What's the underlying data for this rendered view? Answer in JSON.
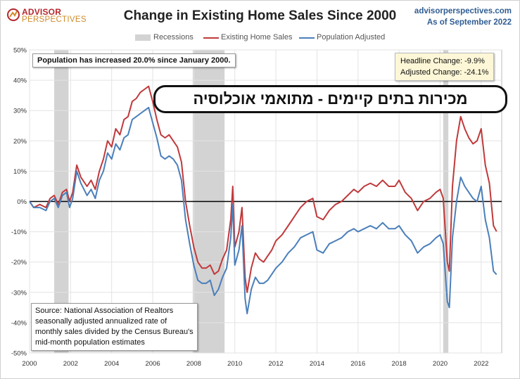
{
  "brand": {
    "line1": "ADVISOR",
    "line2": "PERSPECTIVES"
  },
  "site": {
    "url": "advisorperspectives.com",
    "date": "As of September 2022"
  },
  "colors": {
    "existing": "#c0393b",
    "adjusted": "#4a7fba",
    "recession": "#d3d3d3"
  },
  "annotations": {
    "population": "Population has increased 20.0% since January 2000.",
    "headline": "Headline Change: -9.9%",
    "adjusted": "Adjusted Change: -24.1%",
    "source": "Source: National Association of Realtors seasonally adjusted annualized rate of monthly sales divided by the Census Bureau's mid-month population estimates",
    "overlay_hebrew": "מכירות בתים קיימים - מתואמי אוכלוסיה"
  },
  "chart_data": {
    "type": "line",
    "title": "Change in Existing Home Sales Since 2000",
    "xlabel": "",
    "ylabel": "",
    "xlim": [
      2000,
      2023
    ],
    "ylim": [
      -50,
      50
    ],
    "x_ticks": [
      "2000",
      "2002",
      "2004",
      "2006",
      "2008",
      "2010",
      "2012",
      "2014",
      "2016",
      "2018",
      "2020",
      "2022"
    ],
    "y_ticks": [
      "50%",
      "40%",
      "30%",
      "20%",
      "10%",
      "0%",
      "-10%",
      "-20%",
      "-30%",
      "-40%",
      "-50%"
    ],
    "grid": true,
    "legend": "top-center",
    "legend_entries": [
      "Recessions",
      "Existing Home Sales",
      "Population Adjusted"
    ],
    "recessions": [
      [
        2001.2,
        2001.9
      ],
      [
        2007.95,
        2009.5
      ],
      [
        2020.15,
        2020.4
      ]
    ],
    "series": [
      {
        "name": "Existing Home Sales",
        "color": "#c0393b",
        "points": [
          [
            2000.0,
            0
          ],
          [
            2000.2,
            -2
          ],
          [
            2000.5,
            -1
          ],
          [
            2000.8,
            -2
          ],
          [
            2001.0,
            1
          ],
          [
            2001.2,
            2
          ],
          [
            2001.4,
            -1
          ],
          [
            2001.6,
            3
          ],
          [
            2001.8,
            4
          ],
          [
            2001.95,
            0
          ],
          [
            2002.1,
            3
          ],
          [
            2002.3,
            12
          ],
          [
            2002.5,
            8
          ],
          [
            2002.8,
            5
          ],
          [
            2003.0,
            7
          ],
          [
            2003.2,
            4
          ],
          [
            2003.4,
            10
          ],
          [
            2003.6,
            14
          ],
          [
            2003.8,
            20
          ],
          [
            2004.0,
            18
          ],
          [
            2004.2,
            24
          ],
          [
            2004.4,
            22
          ],
          [
            2004.6,
            27
          ],
          [
            2004.8,
            28
          ],
          [
            2005.0,
            33
          ],
          [
            2005.2,
            34
          ],
          [
            2005.4,
            36
          ],
          [
            2005.6,
            37
          ],
          [
            2005.8,
            38
          ],
          [
            2006.0,
            33
          ],
          [
            2006.2,
            27
          ],
          [
            2006.4,
            22
          ],
          [
            2006.6,
            21
          ],
          [
            2006.8,
            22
          ],
          [
            2007.0,
            20
          ],
          [
            2007.2,
            18
          ],
          [
            2007.4,
            13
          ],
          [
            2007.6,
            0
          ],
          [
            2007.8,
            -8
          ],
          [
            2008.0,
            -15
          ],
          [
            2008.2,
            -20
          ],
          [
            2008.4,
            -22
          ],
          [
            2008.6,
            -22
          ],
          [
            2008.8,
            -21
          ],
          [
            2009.0,
            -24
          ],
          [
            2009.2,
            -23
          ],
          [
            2009.4,
            -19
          ],
          [
            2009.6,
            -16
          ],
          [
            2009.8,
            -6
          ],
          [
            2009.9,
            5
          ],
          [
            2010.0,
            -15
          ],
          [
            2010.2,
            -10
          ],
          [
            2010.35,
            -2
          ],
          [
            2010.5,
            -25
          ],
          [
            2010.6,
            -30
          ],
          [
            2010.8,
            -22
          ],
          [
            2011.0,
            -17
          ],
          [
            2011.2,
            -19
          ],
          [
            2011.4,
            -20
          ],
          [
            2011.6,
            -18
          ],
          [
            2011.8,
            -16
          ],
          [
            2012.0,
            -13
          ],
          [
            2012.3,
            -11
          ],
          [
            2012.6,
            -8
          ],
          [
            2012.9,
            -5
          ],
          [
            2013.2,
            -2
          ],
          [
            2013.5,
            0
          ],
          [
            2013.8,
            1
          ],
          [
            2014.0,
            -5
          ],
          [
            2014.3,
            -6
          ],
          [
            2014.6,
            -3
          ],
          [
            2014.9,
            -1
          ],
          [
            2015.2,
            0
          ],
          [
            2015.5,
            2
          ],
          [
            2015.8,
            4
          ],
          [
            2016.0,
            3
          ],
          [
            2016.3,
            5
          ],
          [
            2016.6,
            6
          ],
          [
            2016.9,
            5
          ],
          [
            2017.2,
            7
          ],
          [
            2017.5,
            5
          ],
          [
            2017.8,
            5
          ],
          [
            2018.0,
            7
          ],
          [
            2018.3,
            3
          ],
          [
            2018.6,
            1
          ],
          [
            2018.9,
            -3
          ],
          [
            2019.2,
            0
          ],
          [
            2019.5,
            1
          ],
          [
            2019.8,
            3
          ],
          [
            2020.0,
            4
          ],
          [
            2020.15,
            1
          ],
          [
            2020.35,
            -20
          ],
          [
            2020.45,
            -23
          ],
          [
            2020.6,
            5
          ],
          [
            2020.8,
            20
          ],
          [
            2021.0,
            28
          ],
          [
            2021.2,
            24
          ],
          [
            2021.4,
            21
          ],
          [
            2021.6,
            19
          ],
          [
            2021.8,
            20
          ],
          [
            2022.0,
            24
          ],
          [
            2022.2,
            12
          ],
          [
            2022.4,
            6
          ],
          [
            2022.6,
            -8
          ],
          [
            2022.75,
            -9.9
          ]
        ]
      },
      {
        "name": "Population Adjusted",
        "color": "#4a7fba",
        "points": [
          [
            2000.0,
            0
          ],
          [
            2000.2,
            -2
          ],
          [
            2000.5,
            -2
          ],
          [
            2000.8,
            -3
          ],
          [
            2001.0,
            0
          ],
          [
            2001.2,
            1
          ],
          [
            2001.4,
            -2
          ],
          [
            2001.6,
            2
          ],
          [
            2001.8,
            3
          ],
          [
            2001.95,
            -2
          ],
          [
            2002.1,
            1
          ],
          [
            2002.3,
            10
          ],
          [
            2002.5,
            6
          ],
          [
            2002.8,
            2
          ],
          [
            2003.0,
            4
          ],
          [
            2003.2,
            1
          ],
          [
            2003.4,
            7
          ],
          [
            2003.6,
            10
          ],
          [
            2003.8,
            16
          ],
          [
            2004.0,
            14
          ],
          [
            2004.2,
            19
          ],
          [
            2004.4,
            17
          ],
          [
            2004.6,
            21
          ],
          [
            2004.8,
            22
          ],
          [
            2005.0,
            27
          ],
          [
            2005.2,
            28
          ],
          [
            2005.4,
            29
          ],
          [
            2005.6,
            30
          ],
          [
            2005.8,
            31
          ],
          [
            2006.0,
            26
          ],
          [
            2006.2,
            21
          ],
          [
            2006.4,
            15
          ],
          [
            2006.6,
            14
          ],
          [
            2006.8,
            15
          ],
          [
            2007.0,
            14
          ],
          [
            2007.2,
            12
          ],
          [
            2007.4,
            7
          ],
          [
            2007.6,
            -6
          ],
          [
            2007.8,
            -14
          ],
          [
            2008.0,
            -21
          ],
          [
            2008.2,
            -26
          ],
          [
            2008.4,
            -27
          ],
          [
            2008.6,
            -27
          ],
          [
            2008.8,
            -26
          ],
          [
            2009.0,
            -31
          ],
          [
            2009.2,
            -29
          ],
          [
            2009.4,
            -25
          ],
          [
            2009.6,
            -22
          ],
          [
            2009.8,
            -12
          ],
          [
            2009.9,
            -1
          ],
          [
            2010.0,
            -21
          ],
          [
            2010.2,
            -16
          ],
          [
            2010.35,
            -8
          ],
          [
            2010.5,
            -32
          ],
          [
            2010.6,
            -37
          ],
          [
            2010.8,
            -29
          ],
          [
            2011.0,
            -25
          ],
          [
            2011.2,
            -27
          ],
          [
            2011.4,
            -27
          ],
          [
            2011.6,
            -26
          ],
          [
            2011.8,
            -24
          ],
          [
            2012.0,
            -22
          ],
          [
            2012.3,
            -20
          ],
          [
            2012.6,
            -17
          ],
          [
            2012.9,
            -15
          ],
          [
            2013.2,
            -12
          ],
          [
            2013.5,
            -11
          ],
          [
            2013.8,
            -10
          ],
          [
            2014.0,
            -16
          ],
          [
            2014.3,
            -17
          ],
          [
            2014.6,
            -14
          ],
          [
            2014.9,
            -13
          ],
          [
            2015.2,
            -12
          ],
          [
            2015.5,
            -10
          ],
          [
            2015.8,
            -9
          ],
          [
            2016.0,
            -10
          ],
          [
            2016.3,
            -9
          ],
          [
            2016.6,
            -8
          ],
          [
            2016.9,
            -9
          ],
          [
            2017.2,
            -7
          ],
          [
            2017.5,
            -9
          ],
          [
            2017.8,
            -9
          ],
          [
            2018.0,
            -8
          ],
          [
            2018.3,
            -11
          ],
          [
            2018.6,
            -13
          ],
          [
            2018.9,
            -17
          ],
          [
            2019.2,
            -15
          ],
          [
            2019.5,
            -14
          ],
          [
            2019.8,
            -12
          ],
          [
            2020.0,
            -11
          ],
          [
            2020.15,
            -14
          ],
          [
            2020.35,
            -33
          ],
          [
            2020.45,
            -35
          ],
          [
            2020.6,
            -12
          ],
          [
            2020.8,
            0
          ],
          [
            2021.0,
            8
          ],
          [
            2021.2,
            5
          ],
          [
            2021.4,
            3
          ],
          [
            2021.6,
            1
          ],
          [
            2021.8,
            0
          ],
          [
            2022.0,
            5
          ],
          [
            2022.2,
            -6
          ],
          [
            2022.4,
            -12
          ],
          [
            2022.6,
            -23
          ],
          [
            2022.75,
            -24.1
          ]
        ]
      }
    ]
  }
}
